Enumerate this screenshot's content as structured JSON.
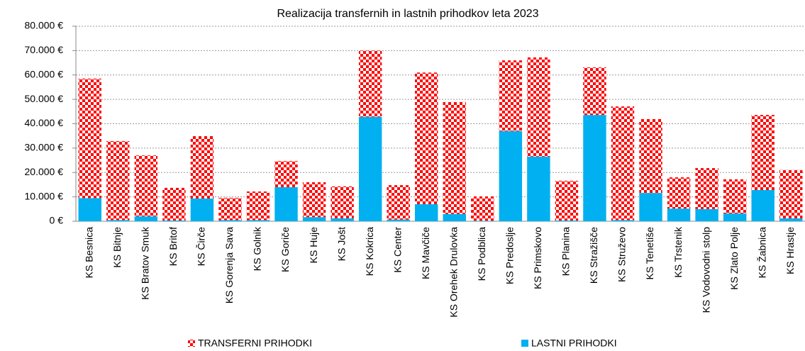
{
  "chart_data": {
    "type": "stacked_bar",
    "title": "Realizacija transfernih in lastnih prihodkov leta 2023",
    "categories": [
      "KS Besnica",
      "KS Bitnje",
      "KS Bratov Smuk",
      "KS Britof",
      "KS Čirče",
      "KS Gorenja Sava",
      "KS Golnik",
      "KS Goriče",
      "KS Huje",
      "KS Jošt",
      "KS Kokrica",
      "KS Center",
      "KS Mavčiče",
      "KS Orehek Drulovka",
      "KS Podblica",
      "KS Predoslje",
      "KS Primskovo",
      "KS Planina",
      "KS Stražišče",
      "KS Struževo",
      "KS Tenetiše",
      "KS Trstenik",
      "KS Vodovodni stolp",
      "KS Zlato Polje",
      "KS Žabnica",
      "KS Hrastje"
    ],
    "series": [
      {
        "name": "TRANSFERNI PRIHODKI",
        "color": "#ff0000",
        "values": [
          49000,
          32400,
          25000,
          13400,
          25600,
          9100,
          11700,
          10700,
          14300,
          13100,
          27200,
          14100,
          54000,
          45900,
          10000,
          29000,
          40700,
          16300,
          19500,
          46600,
          30300,
          12800,
          16800,
          14000,
          30800,
          19800
        ]
      },
      {
        "name": "LASTNI PRIHODKI",
        "color": "#00b0f0",
        "values": [
          9500,
          500,
          2000,
          300,
          9300,
          500,
          500,
          14000,
          1700,
          1200,
          42800,
          700,
          7000,
          3000,
          200,
          37000,
          26500,
          300,
          43600,
          500,
          11600,
          5200,
          5000,
          3200,
          12800,
          1200
        ]
      }
    ],
    "ylim": [
      0,
      80000
    ],
    "yticks": [
      {
        "value": 0,
        "label": "0 €"
      },
      {
        "value": 10000,
        "label": "10.000 €"
      },
      {
        "value": 20000,
        "label": "20.000 €"
      },
      {
        "value": 30000,
        "label": "30.000 €"
      },
      {
        "value": 40000,
        "label": "40.000 €"
      },
      {
        "value": 50000,
        "label": "50.000 €"
      },
      {
        "value": 60000,
        "label": "60.000 €"
      },
      {
        "value": 70000,
        "label": "70.000 €"
      },
      {
        "value": 80000,
        "label": "80.000 €"
      }
    ],
    "grid": true
  }
}
